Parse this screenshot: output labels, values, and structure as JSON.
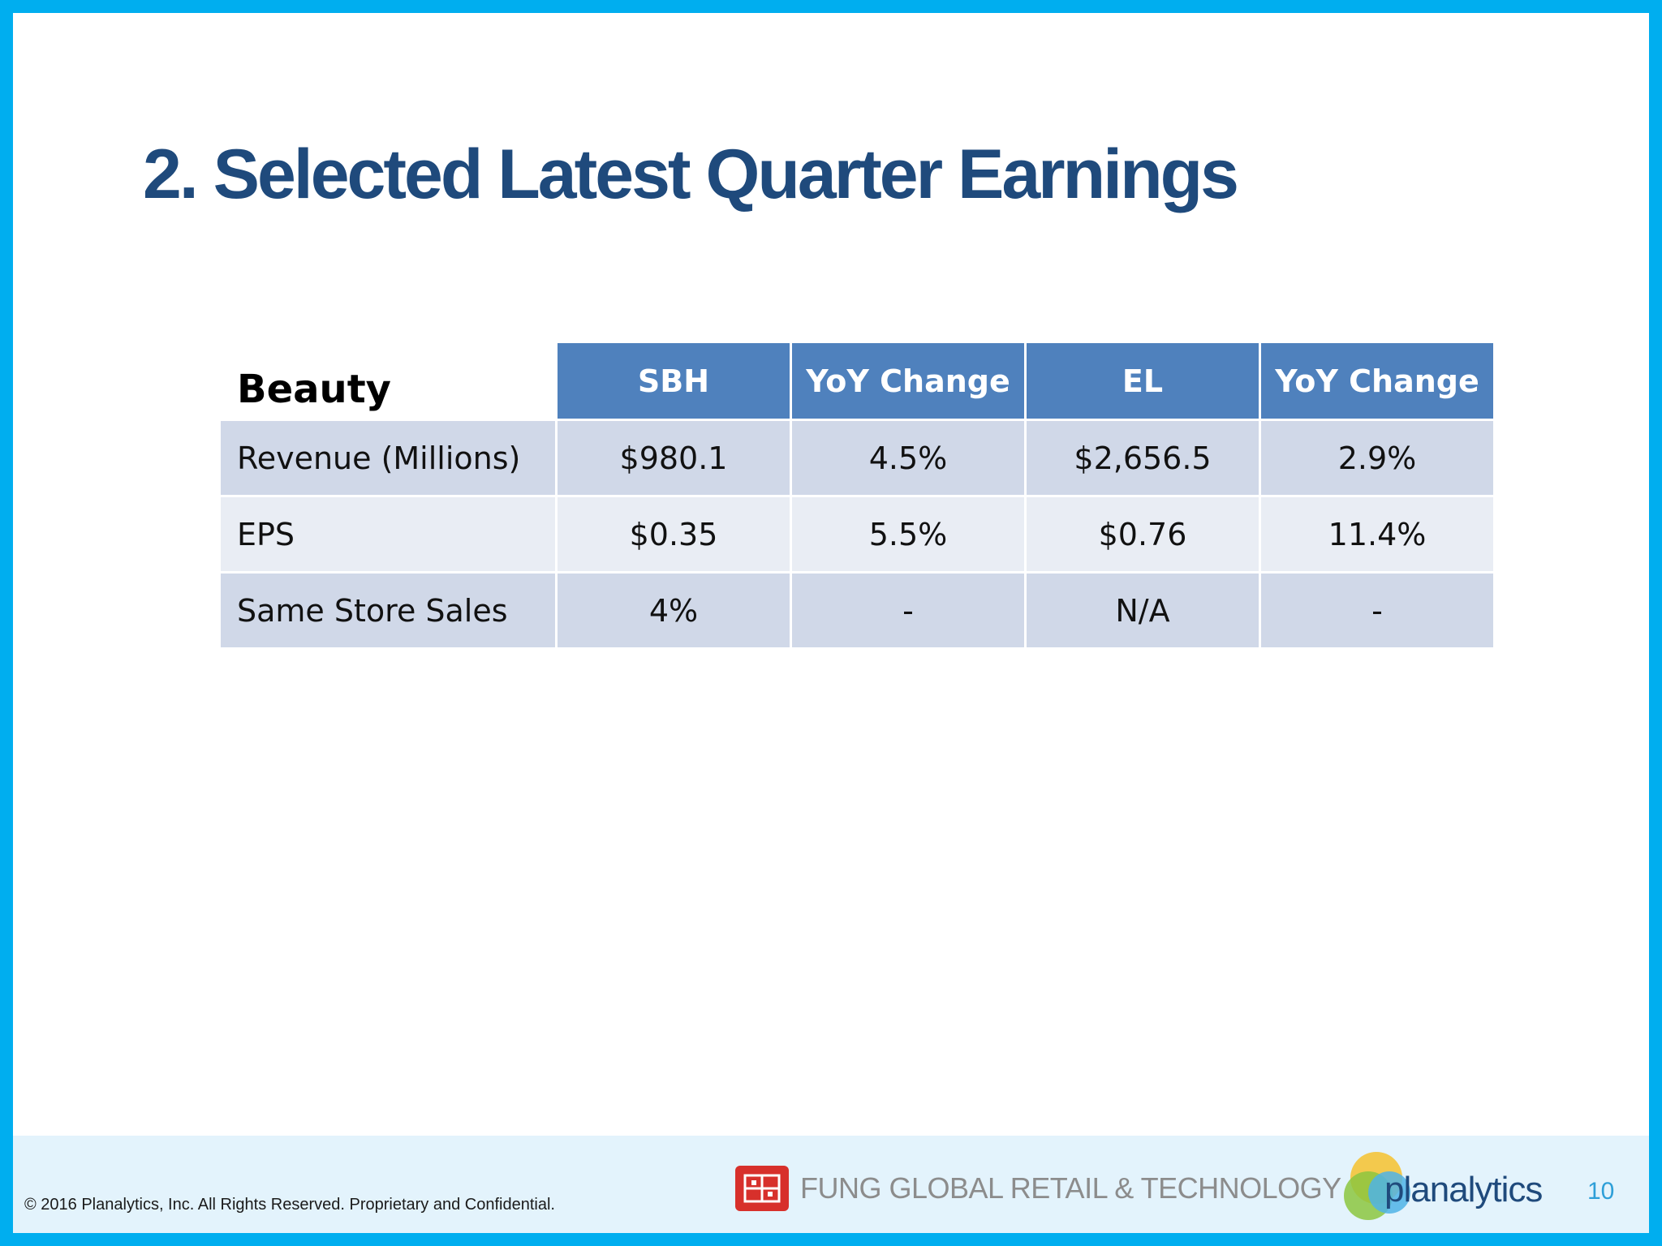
{
  "slide": {
    "title": "2. Selected Latest Quarter Earnings",
    "page_number": "10",
    "accent_color": "#00AEEF",
    "title_color": "#1F4A7C"
  },
  "table": {
    "corner_label": "Beauty",
    "columns": [
      "SBH",
      "YoY Change",
      "EL",
      "YoY Change"
    ],
    "rows": [
      {
        "label": "Revenue (Millions)",
        "cells": [
          "$980.1",
          "4.5%",
          "$2,656.5",
          "2.9%"
        ]
      },
      {
        "label": "EPS",
        "cells": [
          "$0.35",
          "5.5%",
          "$0.76",
          "11.4%"
        ]
      },
      {
        "label": "Same Store Sales",
        "cells": [
          "4%",
          "-",
          "N/A",
          "-"
        ]
      }
    ],
    "header_color": "#4F81BD",
    "row_colors": [
      "#D0D8E8",
      "#E9EDF4"
    ]
  },
  "footer": {
    "copyright": "© 2016 Planalytics, Inc. All Rights Reserved. Proprietary and Confidential.",
    "fung_logo_text": "FUNG GLOBAL RETAIL & TECHNOLOGY",
    "planalytics_logo_text": "planalytics"
  }
}
